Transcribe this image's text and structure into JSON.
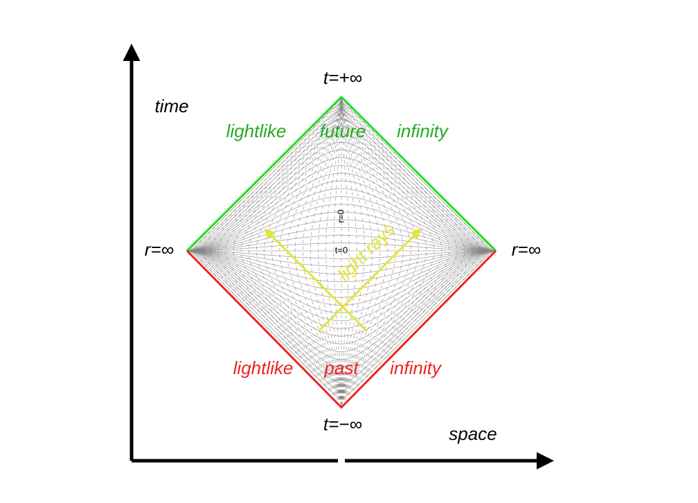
{
  "axes": {
    "time": "time",
    "space": "space"
  },
  "labels": {
    "top": "t=+∞",
    "bottom": "t=−∞",
    "left": "r=∞",
    "right": "r=∞",
    "r0": "r=0",
    "t0": "t=0",
    "light_rays": "light rays"
  },
  "future": [
    "lightlike",
    "future",
    "infinity"
  ],
  "past": [
    "lightlike",
    "past",
    "infinity"
  ]
}
